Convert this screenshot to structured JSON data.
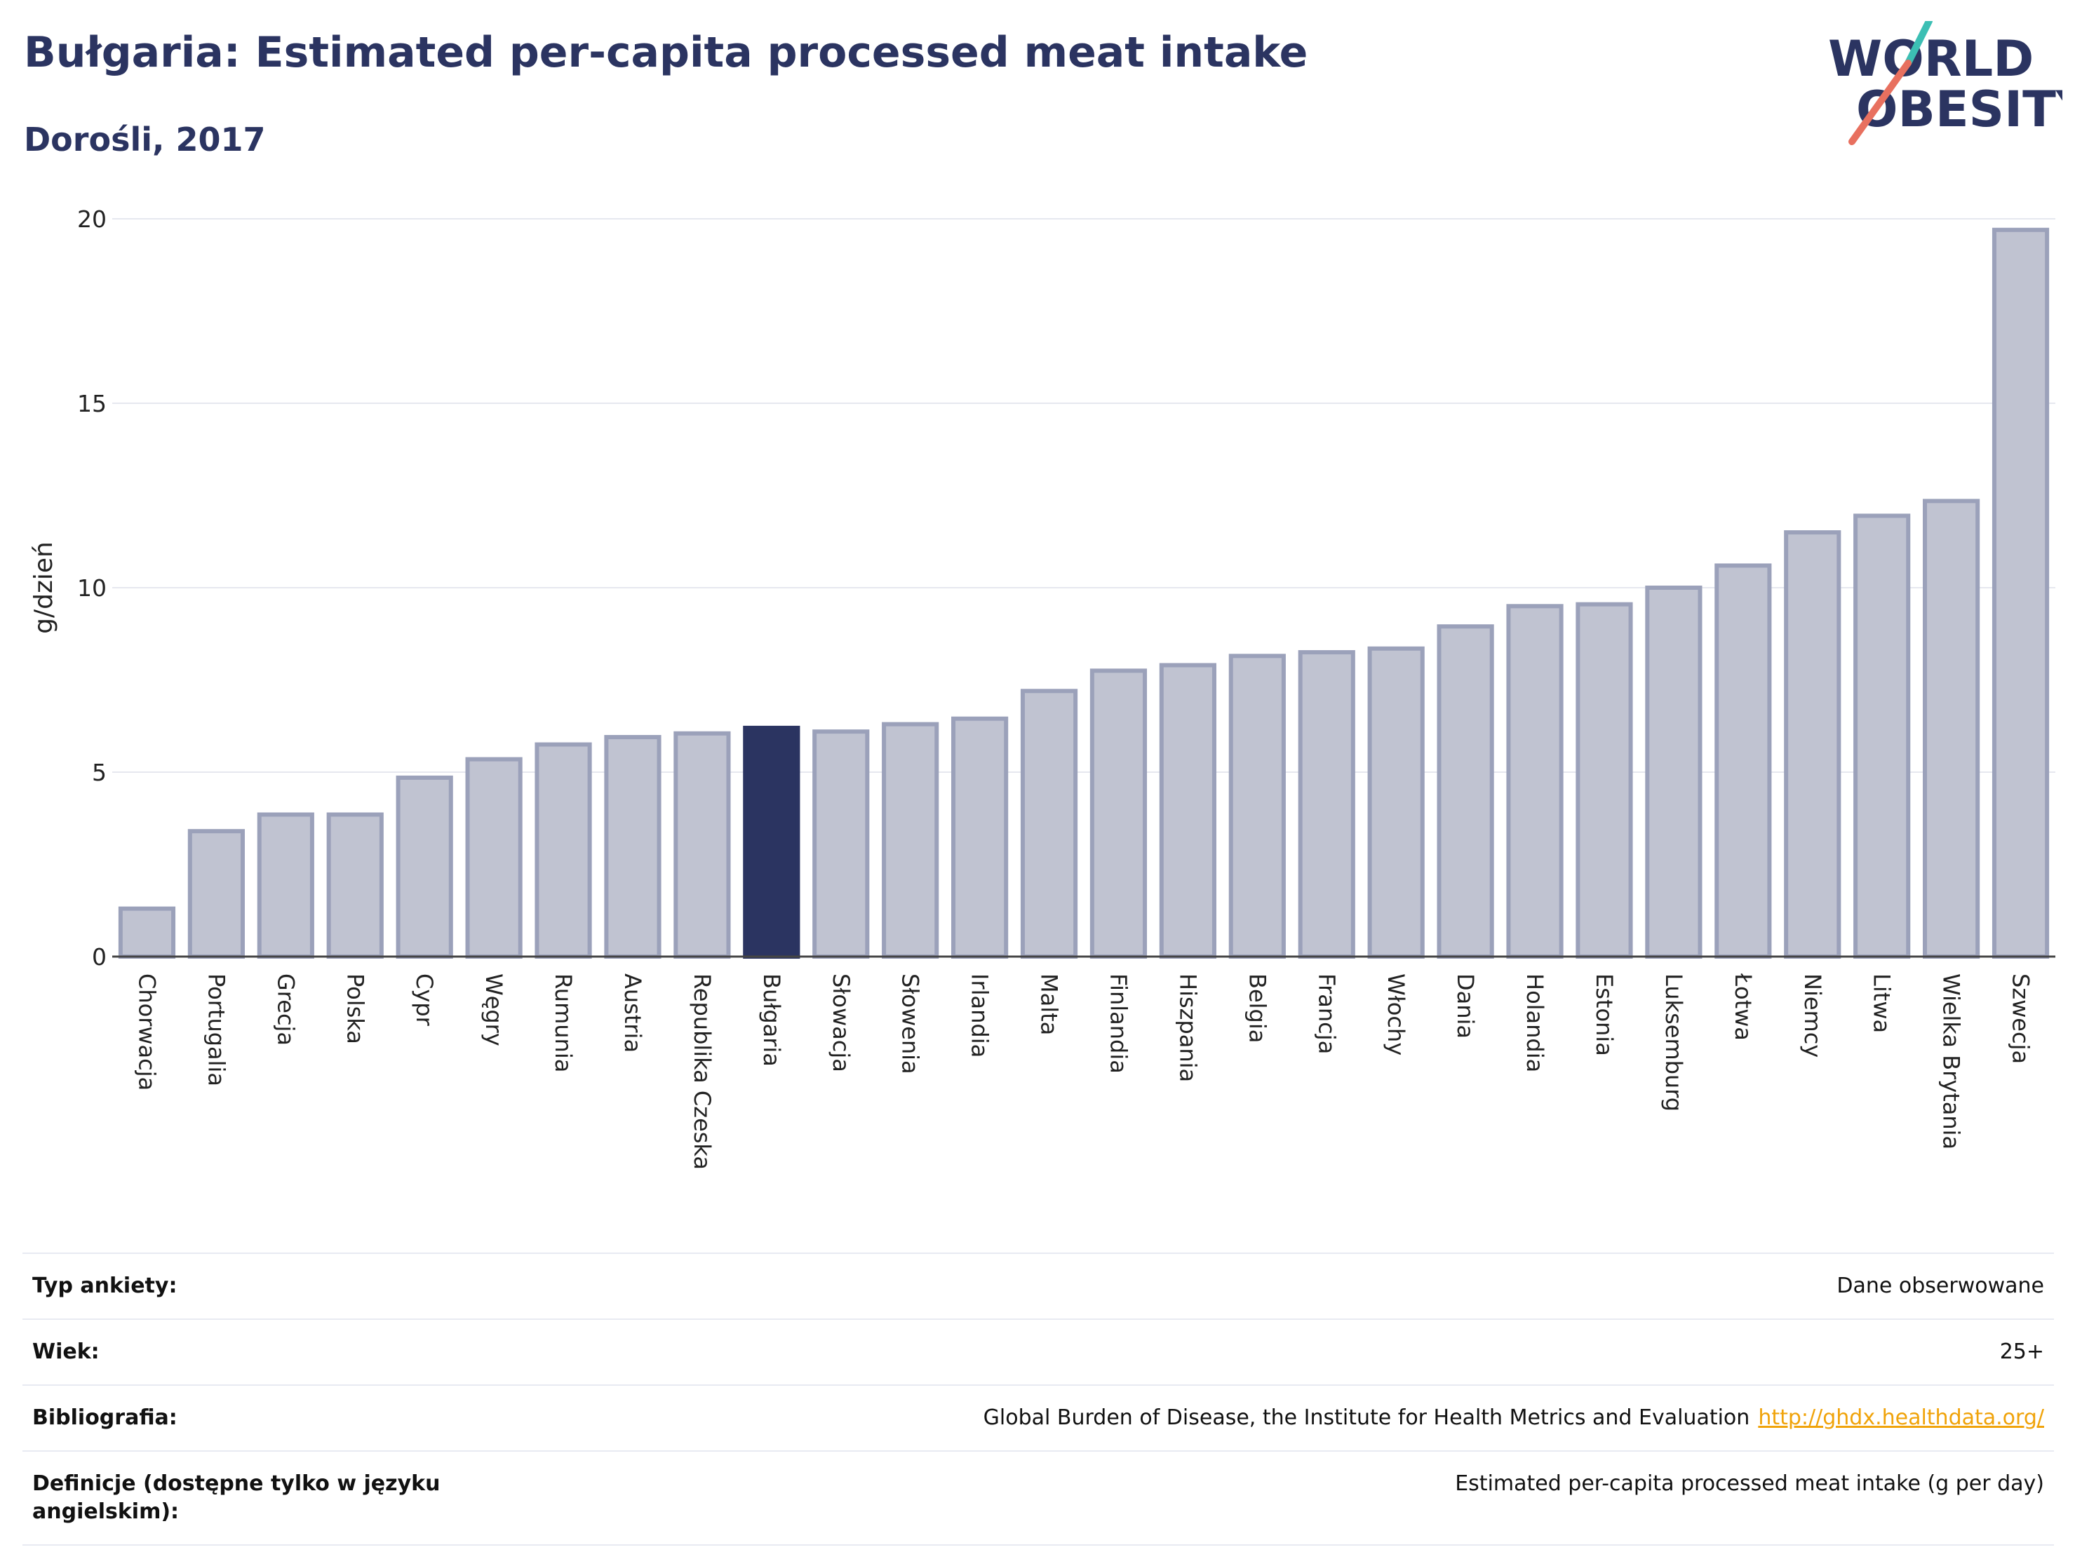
{
  "header": {
    "title": "Bułgaria: Estimated per-capita processed meat intake",
    "subtitle": "Dorośli, 2017"
  },
  "logo": {
    "line1": "WORLD",
    "line2": "OBESITY",
    "text_color": "#2b3461",
    "accent_teal": "#3cbfb4",
    "accent_red": "#e8705f"
  },
  "colors": {
    "bar_fill": "#c0c3d1",
    "bar_stroke": "#9ba1ba",
    "highlight_fill": "#2b3461",
    "grid": "#e6e8ef",
    "link": "#f0a30a"
  },
  "chart_data": {
    "type": "bar",
    "ylabel": "g/dzień",
    "xlabel": "",
    "ylim": [
      0,
      20
    ],
    "yticks": [
      0,
      5,
      10,
      15,
      20
    ],
    "grid": true,
    "highlight": "Bułgaria",
    "categories": [
      "Chorwacja",
      "Portugalia",
      "Grecja",
      "Polska",
      "Cypr",
      "Węgry",
      "Rumunia",
      "Austria",
      "Republika Czeska",
      "Bułgaria",
      "Słowacja",
      "Słowenia",
      "Irlandia",
      "Malta",
      "Finlandia",
      "Hiszpania",
      "Belgia",
      "Francja",
      "Włochy",
      "Dania",
      "Holandia",
      "Estonia",
      "Luksemburg",
      "Łotwa",
      "Niemcy",
      "Litwa",
      "Wielka Brytania",
      "Szwecja"
    ],
    "values": [
      1.3,
      3.4,
      3.85,
      3.85,
      4.85,
      5.35,
      5.75,
      5.95,
      6.05,
      6.2,
      6.1,
      6.3,
      6.45,
      7.2,
      7.75,
      7.9,
      8.15,
      8.25,
      8.35,
      8.95,
      9.5,
      9.55,
      10.0,
      10.6,
      11.5,
      11.95,
      12.35,
      19.7
    ]
  },
  "info": [
    {
      "label": "Typ ankiety:",
      "value": "Dane obserwowane"
    },
    {
      "label": "Wiek:",
      "value": "25+"
    },
    {
      "label": "Bibliografia:",
      "value": "Global Burden of Disease, the Institute for Health Metrics and Evaluation",
      "link": "http://ghdx.healthdata.org/"
    },
    {
      "label": "Definicje (dostępne tylko w języku angielskim):",
      "value": "Estimated per-capita processed meat intake (g per day)"
    }
  ]
}
